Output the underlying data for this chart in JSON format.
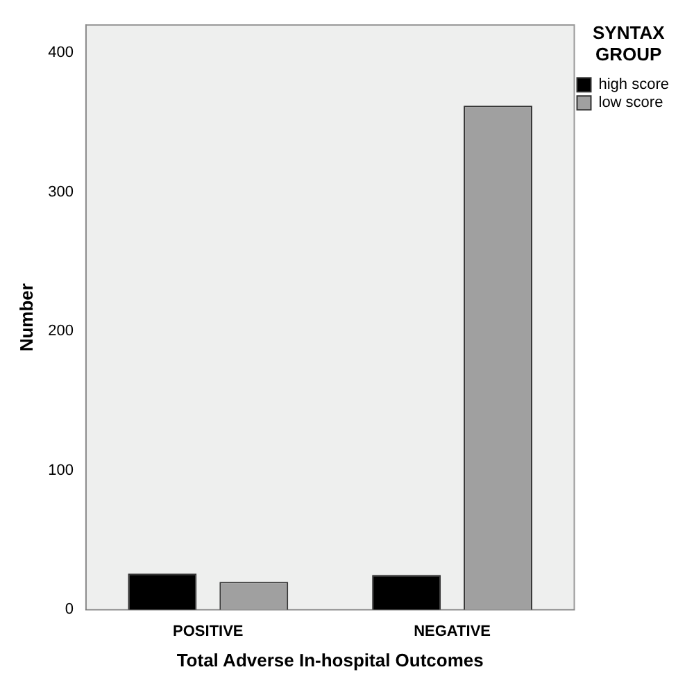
{
  "chart_data": {
    "type": "bar",
    "xlabel": "Total Adverse In-hospital Outcomes",
    "ylabel": "Number",
    "legend_title": "SYNTAX GROUP",
    "categories": [
      "POSITIVE",
      "NEGATIVE"
    ],
    "series": [
      {
        "name": "high score",
        "color": "#000000",
        "values": [
          26,
          25
        ]
      },
      {
        "name": "low score",
        "color": "#a0a0a0",
        "values": [
          20,
          362
        ]
      }
    ],
    "ylim": [
      0,
      420
    ],
    "yticks": [
      0,
      100,
      200,
      300,
      400
    ],
    "grid": false,
    "legend": "top right"
  }
}
